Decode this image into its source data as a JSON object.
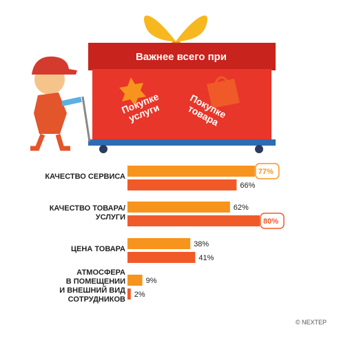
{
  "chart_data": {
    "type": "bar",
    "title": "Важнее всего при",
    "categories": [
      "КАЧЕСТВО СЕРВИСА",
      "КАЧЕСТВО ТОВАРА/\nУСЛУГИ",
      "ЦЕНА ТОВАРА",
      "АТМОСФЕРА\nВ ПОМЕЩЕНИИ\nИ ВНЕШНИЙ ВИД\nСОТРУДНИКОВ"
    ],
    "series": [
      {
        "name": "Покупке\nуслуги",
        "color": "#f7941d",
        "values": [
          77,
          62,
          38,
          9
        ],
        "value_labels": [
          "77%",
          "62%",
          "38%",
          "9%"
        ]
      },
      {
        "name": "Покупке\nтовара",
        "color": "#f05a28",
        "values": [
          66,
          80,
          41,
          2
        ],
        "value_labels": [
          "66%",
          "80%",
          "41%",
          "2%"
        ]
      }
    ],
    "credit": "© NEXTEP"
  }
}
